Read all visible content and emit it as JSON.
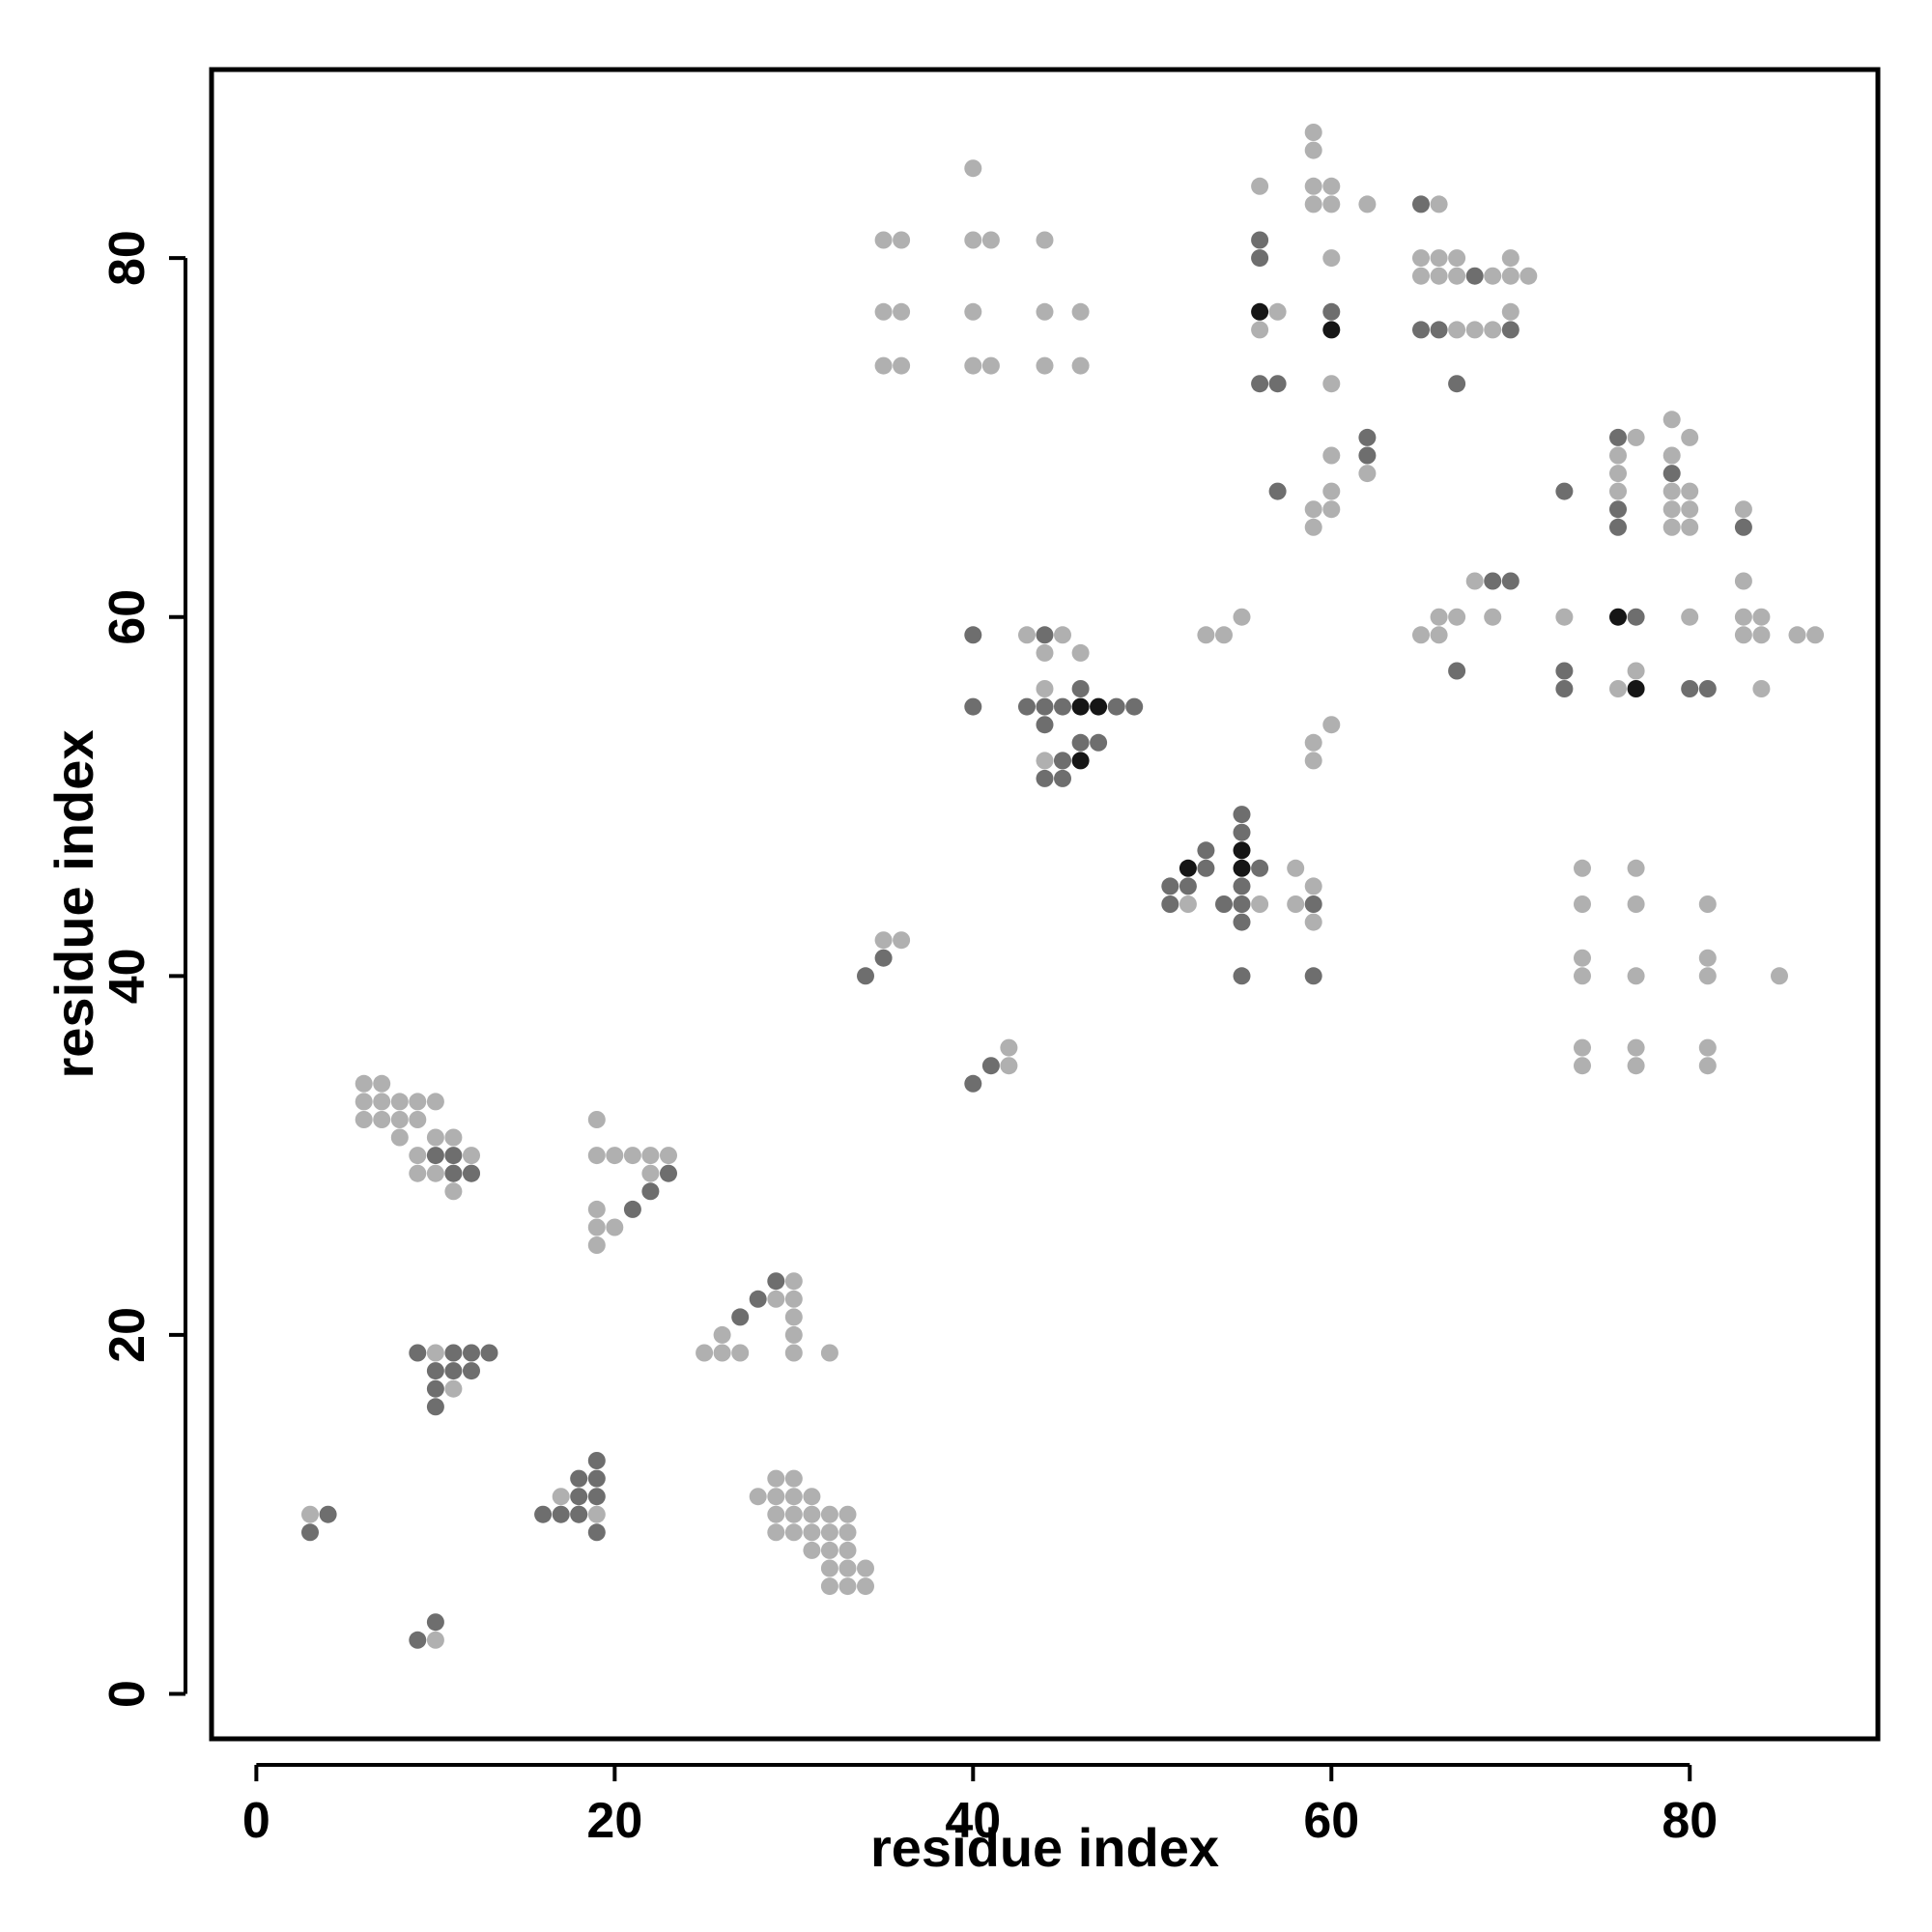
{
  "chart_data": {
    "type": "scatter",
    "title": "",
    "xlabel": "residue index",
    "ylabel": "residue index",
    "xlim": [
      -2.5,
      90.5
    ],
    "ylim": [
      -2.5,
      90.5
    ],
    "xticks": [
      0,
      20,
      40,
      60,
      80
    ],
    "yticks": [
      0,
      20,
      40,
      60,
      80
    ],
    "grid": false,
    "legend": "none",
    "colors": {
      "light": "#b0b0b0",
      "medium": "#6e6e6e",
      "dark": "#161616",
      "frame": "#000000"
    },
    "series": [
      {
        "intensity": "light",
        "points": [
          [
            3,
            10
          ],
          [
            10,
            3
          ],
          [
            6,
            32
          ],
          [
            6,
            33
          ],
          [
            6,
            34
          ],
          [
            7,
            32
          ],
          [
            7,
            33
          ],
          [
            7,
            34
          ],
          [
            8,
            31
          ],
          [
            8,
            32
          ],
          [
            8,
            33
          ],
          [
            9,
            29
          ],
          [
            9,
            30
          ],
          [
            9,
            32
          ],
          [
            9,
            33
          ],
          [
            10,
            29
          ],
          [
            10,
            31
          ],
          [
            10,
            33
          ],
          [
            11,
            28
          ],
          [
            11,
            29
          ],
          [
            11,
            31
          ],
          [
            12,
            29
          ],
          [
            12,
            30
          ],
          [
            10,
            19
          ],
          [
            11,
            17
          ],
          [
            19,
            25
          ],
          [
            19,
            26
          ],
          [
            19,
            27
          ],
          [
            19,
            30
          ],
          [
            19,
            32
          ],
          [
            20,
            26
          ],
          [
            20,
            30
          ],
          [
            21,
            30
          ],
          [
            22,
            29
          ],
          [
            22,
            30
          ],
          [
            23,
            30
          ],
          [
            17,
            11
          ],
          [
            18,
            10
          ],
          [
            19,
            10
          ],
          [
            25,
            19
          ],
          [
            26,
            19
          ],
          [
            26,
            20
          ],
          [
            27,
            19
          ],
          [
            29,
            22
          ],
          [
            30,
            19
          ],
          [
            30,
            20
          ],
          [
            30,
            21
          ],
          [
            30,
            22
          ],
          [
            30,
            23
          ],
          [
            32,
            19
          ],
          [
            28,
            11
          ],
          [
            29,
            9
          ],
          [
            29,
            10
          ],
          [
            29,
            11
          ],
          [
            29,
            12
          ],
          [
            30,
            9
          ],
          [
            30,
            10
          ],
          [
            30,
            11
          ],
          [
            30,
            12
          ],
          [
            31,
            8
          ],
          [
            31,
            9
          ],
          [
            31,
            10
          ],
          [
            31,
            11
          ],
          [
            32,
            6
          ],
          [
            32,
            7
          ],
          [
            32,
            8
          ],
          [
            32,
            9
          ],
          [
            32,
            10
          ],
          [
            33,
            6
          ],
          [
            33,
            7
          ],
          [
            33,
            8
          ],
          [
            33,
            9
          ],
          [
            33,
            10
          ],
          [
            34,
            6
          ],
          [
            34,
            7
          ],
          [
            35,
            42
          ],
          [
            36,
            42
          ],
          [
            42,
            35
          ],
          [
            42,
            36
          ],
          [
            35,
            74
          ],
          [
            35,
            77
          ],
          [
            35,
            81
          ],
          [
            36,
            74
          ],
          [
            36,
            77
          ],
          [
            36,
            81
          ],
          [
            40,
            74
          ],
          [
            40,
            77
          ],
          [
            40,
            81
          ],
          [
            40,
            85
          ],
          [
            41,
            74
          ],
          [
            41,
            81
          ],
          [
            44,
            74
          ],
          [
            44,
            77
          ],
          [
            44,
            81
          ],
          [
            46,
            74
          ],
          [
            46,
            77
          ],
          [
            43,
            59
          ],
          [
            44,
            56
          ],
          [
            44,
            58
          ],
          [
            44,
            52
          ],
          [
            45,
            59
          ],
          [
            46,
            58
          ],
          [
            45,
            52
          ],
          [
            52,
            44
          ],
          [
            53,
            59
          ],
          [
            54,
            59
          ],
          [
            55,
            60
          ],
          [
            56,
            44
          ],
          [
            58,
            44
          ],
          [
            58,
            46
          ],
          [
            59,
            43
          ],
          [
            59,
            45
          ],
          [
            59,
            52
          ],
          [
            59,
            53
          ],
          [
            60,
            54
          ],
          [
            56,
            84
          ],
          [
            56,
            76
          ],
          [
            57,
            77
          ],
          [
            59,
            83
          ],
          [
            59,
            84
          ],
          [
            59,
            86
          ],
          [
            59,
            87
          ],
          [
            60,
            80
          ],
          [
            60,
            83
          ],
          [
            60,
            84
          ],
          [
            60,
            73
          ],
          [
            62,
            83
          ],
          [
            59,
            65
          ],
          [
            59,
            66
          ],
          [
            60,
            66
          ],
          [
            60,
            67
          ],
          [
            60,
            69
          ],
          [
            62,
            68
          ],
          [
            65,
            59
          ],
          [
            66,
            59
          ],
          [
            66,
            60
          ],
          [
            67,
            60
          ],
          [
            68,
            62
          ],
          [
            69,
            60
          ],
          [
            65,
            79
          ],
          [
            65,
            80
          ],
          [
            66,
            79
          ],
          [
            66,
            80
          ],
          [
            66,
            83
          ],
          [
            67,
            79
          ],
          [
            67,
            80
          ],
          [
            67,
            76
          ],
          [
            68,
            76
          ],
          [
            69,
            76
          ],
          [
            69,
            79
          ],
          [
            70,
            77
          ],
          [
            70,
            79
          ],
          [
            70,
            80
          ],
          [
            71,
            79
          ],
          [
            73,
            60
          ],
          [
            76,
            56
          ],
          [
            76,
            67
          ],
          [
            76,
            68
          ],
          [
            76,
            69
          ],
          [
            77,
            57
          ],
          [
            77,
            70
          ],
          [
            79,
            65
          ],
          [
            79,
            66
          ],
          [
            79,
            67
          ],
          [
            79,
            69
          ],
          [
            79,
            71
          ],
          [
            80,
            65
          ],
          [
            80,
            66
          ],
          [
            80,
            67
          ],
          [
            80,
            70
          ],
          [
            80,
            60
          ],
          [
            83,
            59
          ],
          [
            83,
            60
          ],
          [
            83,
            62
          ],
          [
            83,
            66
          ],
          [
            84,
            56
          ],
          [
            84,
            59
          ],
          [
            84,
            60
          ],
          [
            86,
            59
          ],
          [
            87,
            59
          ],
          [
            74,
            35
          ],
          [
            74,
            36
          ],
          [
            74,
            40
          ],
          [
            74,
            41
          ],
          [
            74,
            44
          ],
          [
            74,
            46
          ],
          [
            77,
            35
          ],
          [
            77,
            36
          ],
          [
            77,
            40
          ],
          [
            77,
            44
          ],
          [
            77,
            46
          ],
          [
            81,
            35
          ],
          [
            81,
            36
          ],
          [
            81,
            40
          ],
          [
            81,
            41
          ],
          [
            81,
            44
          ],
          [
            85,
            40
          ]
        ]
      },
      {
        "intensity": "medium",
        "points": [
          [
            3,
            9
          ],
          [
            4,
            10
          ],
          [
            9,
            3
          ],
          [
            10,
            4
          ],
          [
            9,
            19
          ],
          [
            10,
            16
          ],
          [
            10,
            17
          ],
          [
            10,
            18
          ],
          [
            11,
            18
          ],
          [
            11,
            19
          ],
          [
            12,
            18
          ],
          [
            12,
            19
          ],
          [
            13,
            19
          ],
          [
            10,
            30
          ],
          [
            11,
            30
          ],
          [
            11,
            29
          ],
          [
            12,
            29
          ],
          [
            21,
            27
          ],
          [
            22,
            28
          ],
          [
            23,
            29
          ],
          [
            16,
            10
          ],
          [
            17,
            10
          ],
          [
            18,
            10
          ],
          [
            18,
            11
          ],
          [
            18,
            12
          ],
          [
            19,
            9
          ],
          [
            19,
            11
          ],
          [
            19,
            12
          ],
          [
            19,
            13
          ],
          [
            27,
            21
          ],
          [
            28,
            22
          ],
          [
            29,
            23
          ],
          [
            34,
            40
          ],
          [
            35,
            41
          ],
          [
            40,
            34
          ],
          [
            41,
            35
          ],
          [
            40,
            55
          ],
          [
            40,
            59
          ],
          [
            43,
            55
          ],
          [
            44,
            54
          ],
          [
            44,
            55
          ],
          [
            44,
            59
          ],
          [
            44,
            51
          ],
          [
            45,
            51
          ],
          [
            45,
            52
          ],
          [
            45,
            55
          ],
          [
            46,
            56
          ],
          [
            46,
            53
          ],
          [
            47,
            53
          ],
          [
            48,
            55
          ],
          [
            49,
            55
          ],
          [
            51,
            44
          ],
          [
            51,
            45
          ],
          [
            52,
            45
          ],
          [
            53,
            46
          ],
          [
            53,
            47
          ],
          [
            54,
            44
          ],
          [
            55,
            40
          ],
          [
            55,
            43
          ],
          [
            55,
            44
          ],
          [
            55,
            45
          ],
          [
            55,
            48
          ],
          [
            55,
            49
          ],
          [
            56,
            46
          ],
          [
            59,
            40
          ],
          [
            59,
            44
          ],
          [
            56,
            73
          ],
          [
            56,
            80
          ],
          [
            56,
            81
          ],
          [
            57,
            67
          ],
          [
            57,
            73
          ],
          [
            60,
            77
          ],
          [
            62,
            69
          ],
          [
            62,
            70
          ],
          [
            65,
            76
          ],
          [
            65,
            83
          ],
          [
            66,
            76
          ],
          [
            67,
            73
          ],
          [
            67,
            57
          ],
          [
            68,
            79
          ],
          [
            69,
            62
          ],
          [
            70,
            62
          ],
          [
            70,
            76
          ],
          [
            73,
            56
          ],
          [
            73,
            57
          ],
          [
            73,
            67
          ],
          [
            76,
            65
          ],
          [
            76,
            66
          ],
          [
            76,
            70
          ],
          [
            77,
            60
          ],
          [
            79,
            68
          ],
          [
            80,
            56
          ],
          [
            81,
            56
          ],
          [
            83,
            65
          ]
        ]
      },
      {
        "intensity": "dark",
        "points": [
          [
            52,
            46
          ],
          [
            55,
            46
          ],
          [
            55,
            47
          ],
          [
            56,
            77
          ],
          [
            60,
            76
          ],
          [
            46,
            52
          ],
          [
            46,
            55
          ],
          [
            47,
            55
          ],
          [
            76,
            60
          ],
          [
            77,
            56
          ]
        ]
      }
    ]
  }
}
